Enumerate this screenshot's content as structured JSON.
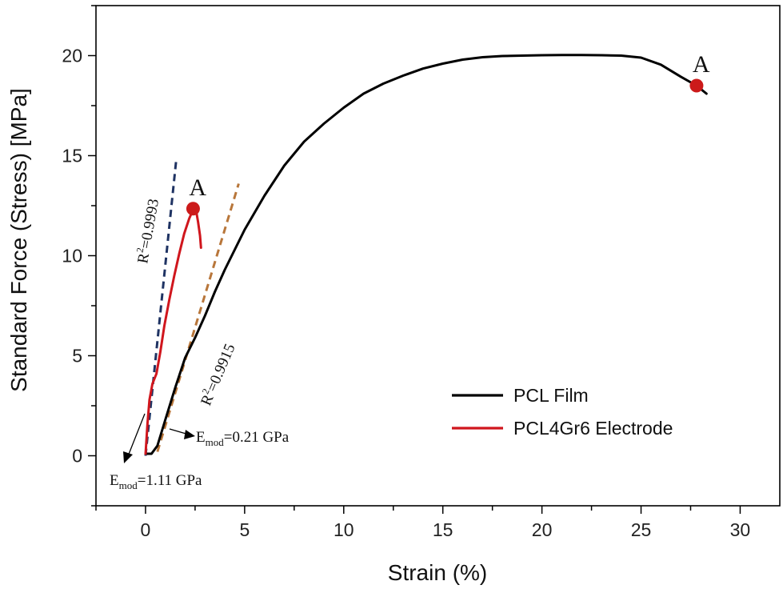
{
  "chart_data": {
    "type": "line",
    "xlabel": "Strain (%)",
    "ylabel": "Standard Force (Stress) [MPa]",
    "xlim": [
      -2.5,
      32
    ],
    "ylim": [
      -2.5,
      22.5
    ],
    "xticks": [
      0,
      5,
      10,
      15,
      20,
      25,
      30
    ],
    "yticks": [
      0,
      5,
      10,
      15,
      20
    ],
    "grid": false,
    "legend_position": "bottom-right",
    "series": [
      {
        "name": "PCL Film",
        "color": "#000000",
        "points": [
          [
            0.0,
            0.1
          ],
          [
            0.3,
            0.1
          ],
          [
            0.6,
            0.5
          ],
          [
            1.0,
            1.8
          ],
          [
            1.5,
            3.4
          ],
          [
            2.0,
            4.9
          ],
          [
            2.5,
            5.9
          ],
          [
            3.0,
            7.0
          ],
          [
            3.5,
            8.2
          ],
          [
            4.0,
            9.3
          ],
          [
            4.5,
            10.3
          ],
          [
            5.0,
            11.3
          ],
          [
            6.0,
            13.0
          ],
          [
            7.0,
            14.5
          ],
          [
            8.0,
            15.7
          ],
          [
            9.0,
            16.6
          ],
          [
            10.0,
            17.4
          ],
          [
            11.0,
            18.1
          ],
          [
            12.0,
            18.6
          ],
          [
            13.0,
            19.0
          ],
          [
            14.0,
            19.35
          ],
          [
            15.0,
            19.6
          ],
          [
            16.0,
            19.8
          ],
          [
            17.0,
            19.92
          ],
          [
            18.0,
            19.98
          ],
          [
            19.0,
            20.0
          ],
          [
            20.0,
            20.02
          ],
          [
            21.0,
            20.03
          ],
          [
            22.0,
            20.03
          ],
          [
            23.0,
            20.02
          ],
          [
            24.0,
            20.0
          ],
          [
            25.0,
            19.9
          ],
          [
            26.0,
            19.55
          ],
          [
            27.0,
            18.95
          ],
          [
            27.8,
            18.5
          ],
          [
            28.3,
            18.1
          ]
        ]
      },
      {
        "name": "PCL4Gr6 Electrode",
        "color": "#d0161d",
        "points": [
          [
            0.0,
            0.1
          ],
          [
            0.1,
            1.6
          ],
          [
            0.2,
            2.8
          ],
          [
            0.35,
            3.6
          ],
          [
            0.55,
            4.1
          ],
          [
            0.75,
            5.2
          ],
          [
            0.95,
            6.5
          ],
          [
            1.2,
            7.8
          ],
          [
            1.45,
            9.0
          ],
          [
            1.7,
            10.1
          ],
          [
            1.95,
            11.1
          ],
          [
            2.2,
            11.85
          ],
          [
            2.4,
            12.3
          ],
          [
            2.55,
            12.25
          ],
          [
            2.65,
            11.7
          ],
          [
            2.75,
            11.0
          ],
          [
            2.8,
            10.4
          ]
        ]
      }
    ],
    "fit_lines": [
      {
        "label": "R²=0.9993",
        "color": "#1f3363",
        "points": [
          [
            0.0,
            0.0
          ],
          [
            1.55,
            14.8
          ]
        ]
      },
      {
        "label": "R²=0.9915",
        "color": "#b8763a",
        "points": [
          [
            0.6,
            0.2
          ],
          [
            4.7,
            13.6
          ]
        ]
      }
    ],
    "markers": [
      {
        "label": "A",
        "x": 2.4,
        "y": 12.35,
        "color": "#cc1a1a"
      },
      {
        "label": "A",
        "x": 27.8,
        "y": 18.5,
        "color": "#cc1a1a"
      }
    ],
    "annotations": {
      "emod_film": {
        "base": "E",
        "sub": "mod",
        "value": "=0.21 GPa"
      },
      "emod_electrode": {
        "base": "E",
        "sub": "mod",
        "value": "=1.11 GPa"
      },
      "r2_electrode": {
        "base": "R",
        "sup": "2",
        "value": "=0.9993"
      },
      "r2_film": {
        "base": "R",
        "sup": "2",
        "value": "=0.9915"
      }
    }
  }
}
